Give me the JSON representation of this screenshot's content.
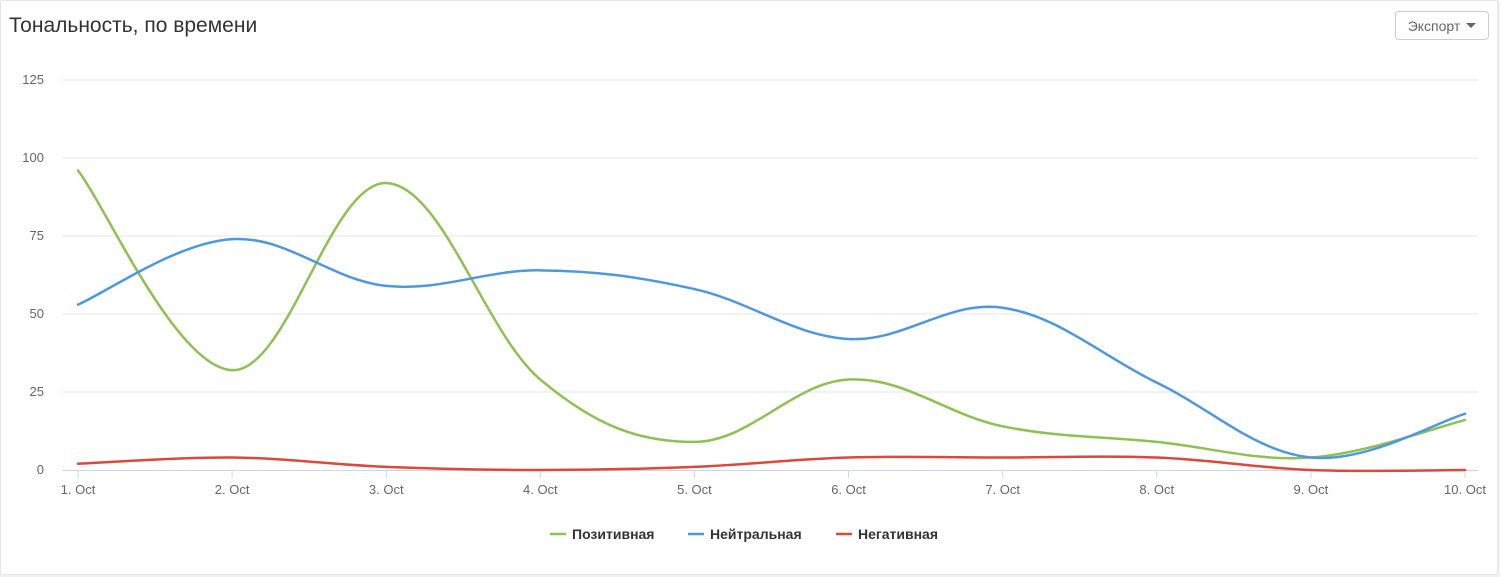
{
  "header": {
    "title": "Тональность, по времени",
    "export_label": "Экспорт"
  },
  "chart_data": {
    "type": "line",
    "title": "Тональность, по времени",
    "xlabel": "",
    "ylabel": "",
    "categories": [
      "1. Oct",
      "2. Oct",
      "3. Oct",
      "4. Oct",
      "5. Oct",
      "6. Oct",
      "7. Oct",
      "8. Oct",
      "9. Oct",
      "10. Oct"
    ],
    "ylim": [
      0,
      125
    ],
    "yticks": [
      0,
      25,
      50,
      75,
      100,
      125
    ],
    "grid": true,
    "legend_position": "bottom-center",
    "series": [
      {
        "name": "Позитивная",
        "color": "#8dc152",
        "values": [
          96,
          32,
          92,
          29,
          9,
          29,
          14,
          9,
          4,
          16
        ]
      },
      {
        "name": "Нейтральная",
        "color": "#4e98e0",
        "values": [
          53,
          74,
          59,
          64,
          58,
          42,
          52,
          28,
          4,
          18
        ]
      },
      {
        "name": "Негативная",
        "color": "#d9493e",
        "values": [
          2,
          4,
          1,
          0,
          1,
          4,
          4,
          4,
          0,
          0
        ]
      }
    ]
  }
}
